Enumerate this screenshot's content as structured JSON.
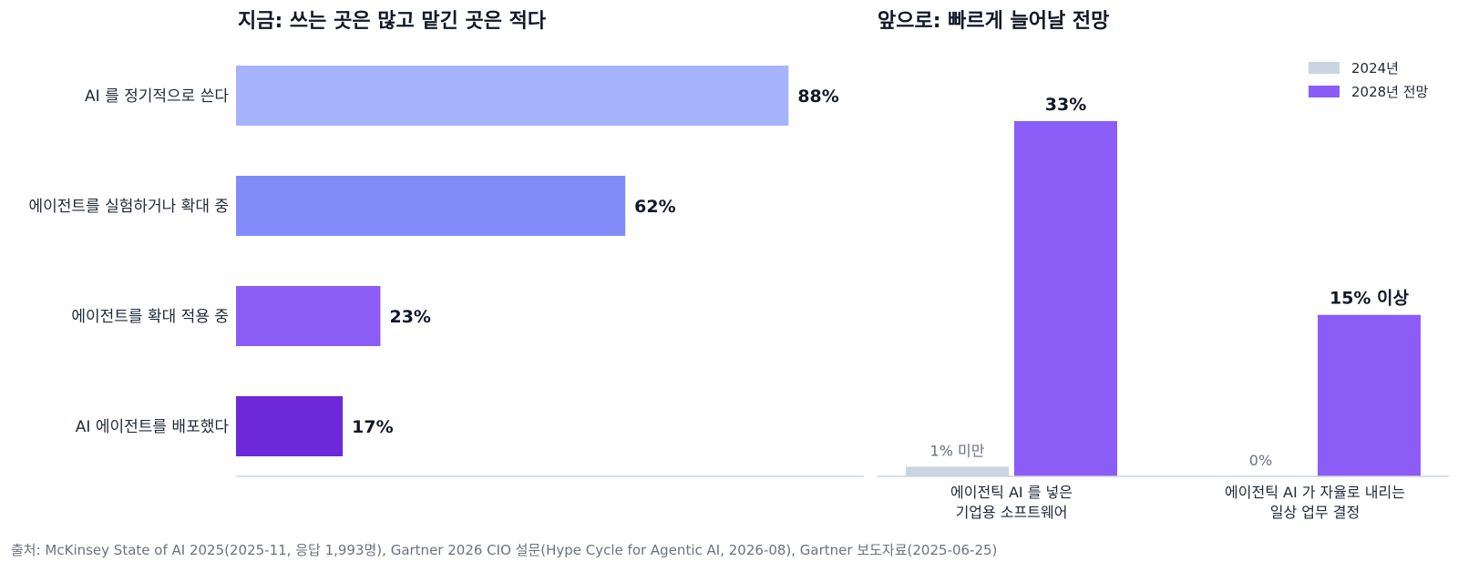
{
  "chart_data": [
    {
      "type": "bar",
      "orientation": "horizontal",
      "title": "지금: 쓰는 곳은 많고 맡긴 곳은 적다",
      "categories": [
        "AI 를 정기적으로 쓴다",
        "에이전트를 실험하거나 확대 중",
        "에이전트를 확대 적용 중",
        "AI 에이전트를 배포했다"
      ],
      "values": [
        88,
        62,
        23,
        17
      ],
      "value_labels": [
        "88%",
        "62%",
        "23%",
        "17%"
      ],
      "colors": [
        "#a5b4fc",
        "#818cf8",
        "#8b5cf6",
        "#6d28d9"
      ],
      "xlim": [
        0,
        100
      ],
      "grid": false
    },
    {
      "type": "bar",
      "orientation": "vertical",
      "title": "앞으로: 빠르게 늘어날 전망",
      "categories": [
        [
          "에이전틱 AI 를 넣은",
          "기업용 소프트웨어"
        ],
        [
          "에이전틱 AI 가 자율로 내리는",
          "일상 업무 결정"
        ]
      ],
      "series": [
        {
          "name": "2024년",
          "values": [
            0.9,
            0
          ],
          "value_labels": [
            "1% 미만",
            "0%"
          ],
          "color": "#cbd5e1"
        },
        {
          "name": "2028년 전망",
          "values": [
            33,
            15
          ],
          "value_labels": [
            "33%",
            "15% 이상"
          ],
          "color": "#8b5cf6"
        }
      ],
      "ylim": [
        0,
        33
      ],
      "legend_position": "top-right",
      "grid": false
    }
  ],
  "source": "출처: McKinsey State of AI 2025(2025-11, 응답 1,993명), Gartner 2026 CIO 설문(Hype Cycle for Agentic AI, 2026-08), Gartner 보도자료(2025-06-25)"
}
